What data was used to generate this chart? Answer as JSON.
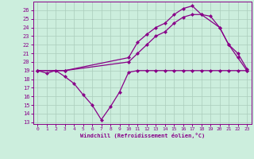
{
  "xlabel": "Windchill (Refroidissement éolien,°C)",
  "bg_color": "#cceedd",
  "grid_color": "#aaccbb",
  "line_color": "#880088",
  "xlim_min": -0.5,
  "xlim_max": 23.5,
  "ylim_min": 12.8,
  "ylim_max": 27.0,
  "yticks": [
    13,
    14,
    15,
    16,
    17,
    18,
    19,
    20,
    21,
    22,
    23,
    24,
    25,
    26
  ],
  "xticks": [
    0,
    1,
    2,
    3,
    4,
    5,
    6,
    7,
    8,
    9,
    10,
    11,
    12,
    13,
    14,
    15,
    16,
    17,
    18,
    19,
    20,
    21,
    22,
    23
  ],
  "line1_x": [
    0,
    1,
    2,
    3,
    4,
    5,
    6,
    7,
    8,
    9,
    10,
    11,
    12,
    13,
    14,
    15,
    16,
    17,
    18,
    19,
    20,
    21,
    22,
    23
  ],
  "line1_y": [
    19,
    18.7,
    19.0,
    18.3,
    17.5,
    16.2,
    15.0,
    13.3,
    14.8,
    16.5,
    18.8,
    19.0,
    19.0,
    19.0,
    19.0,
    19.0,
    19.0,
    19.0,
    19.0,
    19.0,
    19.0,
    19.0,
    19.0,
    19.0
  ],
  "line2_x": [
    0,
    3,
    10,
    11,
    12,
    13,
    14,
    15,
    16,
    17,
    18,
    19,
    20,
    21,
    22,
    23
  ],
  "line2_y": [
    19,
    19.0,
    20.0,
    21.0,
    22.0,
    23.0,
    23.5,
    24.5,
    25.2,
    25.5,
    25.5,
    25.3,
    24.0,
    22.0,
    20.5,
    19.0
  ],
  "line3_x": [
    0,
    3,
    10,
    11,
    12,
    13,
    14,
    15,
    16,
    17,
    18,
    20,
    21,
    22,
    23
  ],
  "line3_y": [
    19,
    19.0,
    20.5,
    22.3,
    23.2,
    24.0,
    24.5,
    25.5,
    26.2,
    26.5,
    25.5,
    24.0,
    22.0,
    21.0,
    19.2
  ],
  "marker_size": 2.5,
  "line_width": 0.9
}
